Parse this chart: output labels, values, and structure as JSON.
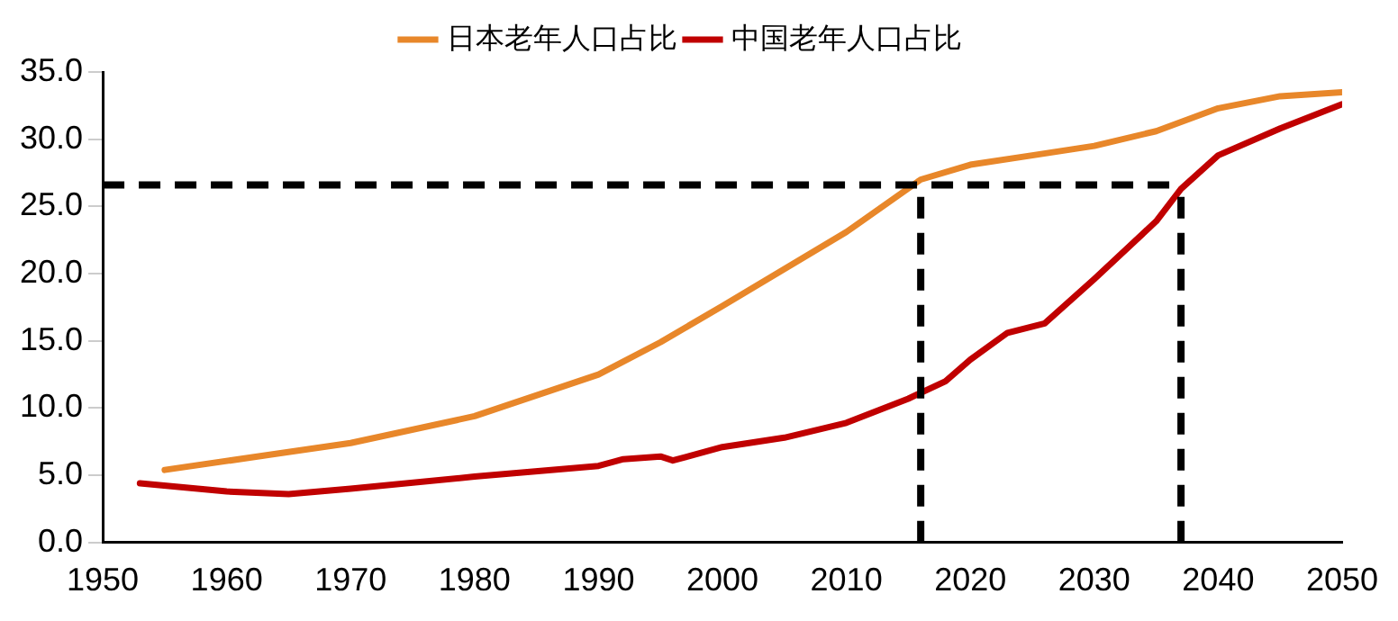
{
  "chart_data": {
    "type": "line",
    "legend": "top",
    "grid": false,
    "marker": "none",
    "line_style": "solid",
    "xlim": [
      1950,
      2050
    ],
    "xticks": [
      1950,
      1960,
      1970,
      1980,
      1990,
      2000,
      2010,
      2020,
      2030,
      2040,
      2050
    ],
    "ylim": [
      0,
      35
    ],
    "yticks": [
      {
        "value": 0,
        "label": "0.0"
      },
      {
        "value": 5,
        "label": "5.0"
      },
      {
        "value": 10,
        "label": "10.0"
      },
      {
        "value": 15,
        "label": "15.0"
      },
      {
        "value": 20,
        "label": "20.0"
      },
      {
        "value": 25,
        "label": "25.0"
      },
      {
        "value": 30,
        "label": "30.0"
      },
      {
        "value": 35,
        "label": "35.0"
      }
    ],
    "series": [
      {
        "name": "日本老年人口占比",
        "color": "#e8872a",
        "x": [
          1955,
          1970,
          1980,
          1990,
          1995,
          2000,
          2010,
          2016,
          2020,
          2025,
          2030,
          2035,
          2040,
          2045,
          2050
        ],
        "values": [
          5.4,
          7.4,
          9.4,
          12.5,
          14.9,
          17.6,
          23.1,
          27.0,
          28.1,
          28.8,
          29.5,
          30.6,
          32.3,
          33.2,
          33.5
        ]
      },
      {
        "name": "中国老年人口占比",
        "color": "#c00000",
        "x": [
          1953,
          1960,
          1965,
          1970,
          1980,
          1990,
          1992,
          1995,
          1996,
          2000,
          2005,
          2010,
          2015,
          2018,
          2020,
          2023,
          2026,
          2030,
          2035,
          2037,
          2040,
          2045,
          2050
        ],
        "values": [
          4.4,
          3.8,
          3.6,
          4.0,
          4.9,
          5.7,
          6.2,
          6.4,
          6.1,
          7.1,
          7.8,
          8.9,
          10.7,
          12.0,
          13.6,
          15.6,
          16.3,
          19.6,
          23.9,
          26.3,
          28.8,
          30.8,
          32.6
        ]
      }
    ],
    "ref_lines": [
      {
        "axis": "y",
        "value": 26.6,
        "color": "#000000",
        "line_style": "dashed"
      },
      {
        "axis": "x",
        "value": 2016,
        "color": "#000000",
        "line_style": "dashed"
      },
      {
        "axis": "x",
        "value": 2037,
        "color": "#000000",
        "line_style": "dashed"
      }
    ]
  }
}
